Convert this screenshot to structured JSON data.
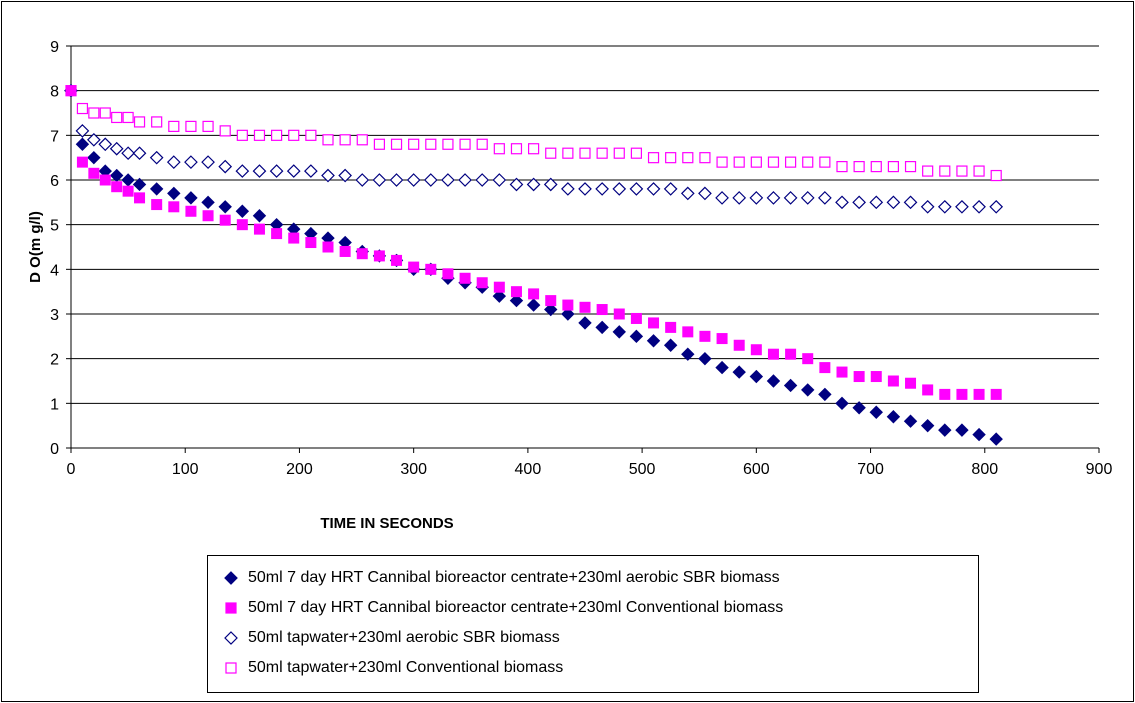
{
  "chart_data": {
    "type": "scatter",
    "title": "",
    "xlabel": "TIME IN SECONDS",
    "ylabel": "D O(m g/l)",
    "xlim": [
      0,
      900
    ],
    "ylim": [
      0,
      9
    ],
    "xticks": [
      0,
      100,
      200,
      300,
      400,
      500,
      600,
      700,
      800,
      900
    ],
    "yticks": [
      0,
      1,
      2,
      3,
      4,
      5,
      6,
      7,
      8,
      9
    ],
    "grid": "horizontal major gridlines",
    "legend_position": "bottom",
    "series": [
      {
        "name": "50ml 7 day HRT Cannibal bioreactor centrate+230ml aerobic SBR biomass",
        "marker": "diamond-filled",
        "color": "#000080",
        "x": [
          0,
          10,
          20,
          30,
          40,
          50,
          60,
          75,
          90,
          105,
          120,
          135,
          150,
          165,
          180,
          195,
          210,
          225,
          240,
          255,
          270,
          285,
          300,
          315,
          330,
          345,
          360,
          375,
          390,
          405,
          420,
          435,
          450,
          465,
          480,
          495,
          510,
          525,
          540,
          555,
          570,
          585,
          600,
          615,
          630,
          645,
          660,
          675,
          690,
          705,
          720,
          735,
          750,
          765,
          780,
          795,
          810
        ],
        "y": [
          8,
          6.8,
          6.5,
          6.2,
          6.1,
          6.0,
          5.9,
          5.8,
          5.7,
          5.6,
          5.5,
          5.4,
          5.3,
          5.2,
          5.0,
          4.9,
          4.8,
          4.7,
          4.6,
          4.4,
          4.3,
          4.2,
          4.0,
          4.0,
          3.8,
          3.7,
          3.6,
          3.4,
          3.3,
          3.2,
          3.1,
          3.0,
          2.8,
          2.7,
          2.6,
          2.5,
          2.4,
          2.3,
          2.1,
          2.0,
          1.8,
          1.7,
          1.6,
          1.5,
          1.4,
          1.3,
          1.2,
          1.0,
          0.9,
          0.8,
          0.7,
          0.6,
          0.5,
          0.4,
          0.4,
          0.3,
          0.2
        ]
      },
      {
        "name": "50ml 7 day HRT Cannibal bioreactor centrate+230ml Conventional biomass",
        "marker": "square-filled",
        "color": "#ff00ff",
        "x": [
          0,
          10,
          20,
          30,
          40,
          50,
          60,
          75,
          90,
          105,
          120,
          135,
          150,
          165,
          180,
          195,
          210,
          225,
          240,
          255,
          270,
          285,
          300,
          315,
          330,
          345,
          360,
          375,
          390,
          405,
          420,
          435,
          450,
          465,
          480,
          495,
          510,
          525,
          540,
          555,
          570,
          585,
          600,
          615,
          630,
          645,
          660,
          675,
          690,
          705,
          720,
          735,
          750,
          765,
          780,
          795,
          810
        ],
        "y": [
          8,
          6.4,
          6.15,
          6.0,
          5.85,
          5.75,
          5.6,
          5.45,
          5.4,
          5.3,
          5.2,
          5.1,
          5.0,
          4.9,
          4.8,
          4.7,
          4.6,
          4.5,
          4.4,
          4.35,
          4.3,
          4.2,
          4.05,
          4.0,
          3.9,
          3.8,
          3.7,
          3.6,
          3.5,
          3.45,
          3.3,
          3.2,
          3.15,
          3.1,
          3.0,
          2.9,
          2.8,
          2.7,
          2.6,
          2.5,
          2.45,
          2.3,
          2.2,
          2.1,
          2.1,
          2.0,
          1.8,
          1.7,
          1.6,
          1.6,
          1.5,
          1.45,
          1.3,
          1.2,
          1.2,
          1.2,
          1.2
        ]
      },
      {
        "name": "50ml tapwater+230ml aerobic SBR biomass",
        "marker": "diamond-open",
        "color": "#000080",
        "x": [
          0,
          10,
          20,
          30,
          40,
          50,
          60,
          75,
          90,
          105,
          120,
          135,
          150,
          165,
          180,
          195,
          210,
          225,
          240,
          255,
          270,
          285,
          300,
          315,
          330,
          345,
          360,
          375,
          390,
          405,
          420,
          435,
          450,
          465,
          480,
          495,
          510,
          525,
          540,
          555,
          570,
          585,
          600,
          615,
          630,
          645,
          660,
          675,
          690,
          705,
          720,
          735,
          750,
          765,
          780,
          795,
          810
        ],
        "y": [
          8,
          7.1,
          6.9,
          6.8,
          6.7,
          6.6,
          6.6,
          6.5,
          6.4,
          6.4,
          6.4,
          6.3,
          6.2,
          6.2,
          6.2,
          6.2,
          6.2,
          6.1,
          6.1,
          6.0,
          6.0,
          6.0,
          6.0,
          6.0,
          6.0,
          6.0,
          6.0,
          6.0,
          5.9,
          5.9,
          5.9,
          5.8,
          5.8,
          5.8,
          5.8,
          5.8,
          5.8,
          5.8,
          5.7,
          5.7,
          5.6,
          5.6,
          5.6,
          5.6,
          5.6,
          5.6,
          5.6,
          5.5,
          5.5,
          5.5,
          5.5,
          5.5,
          5.4,
          5.4,
          5.4,
          5.4,
          5.4
        ]
      },
      {
        "name": "50ml tapwater+230ml Conventional biomass",
        "marker": "square-open",
        "color": "#ff00ff",
        "x": [
          0,
          10,
          20,
          30,
          40,
          50,
          60,
          75,
          90,
          105,
          120,
          135,
          150,
          165,
          180,
          195,
          210,
          225,
          240,
          255,
          270,
          285,
          300,
          315,
          330,
          345,
          360,
          375,
          390,
          405,
          420,
          435,
          450,
          465,
          480,
          495,
          510,
          525,
          540,
          555,
          570,
          585,
          600,
          615,
          630,
          645,
          660,
          675,
          690,
          705,
          720,
          735,
          750,
          765,
          780,
          795,
          810
        ],
        "y": [
          8,
          7.6,
          7.5,
          7.5,
          7.4,
          7.4,
          7.3,
          7.3,
          7.2,
          7.2,
          7.2,
          7.1,
          7.0,
          7.0,
          7.0,
          7.0,
          7.0,
          6.9,
          6.9,
          6.9,
          6.8,
          6.8,
          6.8,
          6.8,
          6.8,
          6.8,
          6.8,
          6.7,
          6.7,
          6.7,
          6.6,
          6.6,
          6.6,
          6.6,
          6.6,
          6.6,
          6.5,
          6.5,
          6.5,
          6.5,
          6.4,
          6.4,
          6.4,
          6.4,
          6.4,
          6.4,
          6.4,
          6.3,
          6.3,
          6.3,
          6.3,
          6.3,
          6.2,
          6.2,
          6.2,
          6.2,
          6.1
        ]
      }
    ]
  }
}
